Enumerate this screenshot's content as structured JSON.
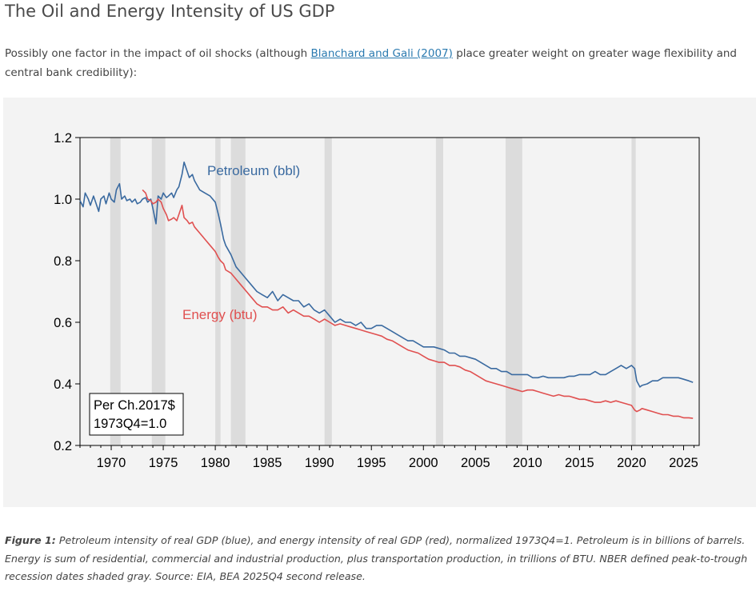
{
  "page": {
    "title": "The Oil and Energy Intensity of US GDP",
    "intro_before": "Possibly one factor in the impact of oil shocks (although ",
    "intro_link": "Blanchard and Gali (2007)",
    "intro_after": " place greater weight on greater wage flexibility and central bank credibility):",
    "caption_label": "Figure 1:",
    "caption_text": " Petroleum intensity of real GDP (blue), and energy intensity of real GDP (red), normalized 1973Q4=1. Petroleum is in billions of barrels. Energy is sum of residential, commercial and industrial production, plus transportation production, in trillions of BTU. NBER defined peak-to-trough recession dates shaded gray. Source: EIA, BEA 2025Q4 second release."
  },
  "chart_data": {
    "type": "line",
    "xlim": [
      1967,
      2026.5
    ],
    "ylim": [
      0.2,
      1.2
    ],
    "xticks": [
      "1970",
      "1975",
      "1980",
      "1985",
      "1990",
      "1995",
      "2000",
      "2005",
      "2010",
      "2015",
      "2020",
      "2025"
    ],
    "yticks": [
      "0.2",
      "0.4",
      "0.6",
      "0.8",
      "1.0",
      "1.2"
    ],
    "grid": false,
    "note_lines": [
      "Per Ch.2017$",
      "1973Q4=1.0"
    ],
    "recessions": [
      [
        1969.9,
        1970.9
      ],
      [
        1973.9,
        1975.2
      ],
      [
        1980.0,
        1980.5
      ],
      [
        1981.5,
        1982.9
      ],
      [
        1990.5,
        1991.2
      ],
      [
        2001.2,
        2001.9
      ],
      [
        2007.9,
        2009.5
      ],
      [
        2020.0,
        2020.4
      ]
    ],
    "series": [
      {
        "name": "Petroleum (bbl)",
        "color": "#3a6aa0",
        "x": [
          1967.0,
          1967.3,
          1967.5,
          1967.8,
          1968.0,
          1968.3,
          1968.5,
          1968.8,
          1969.0,
          1969.3,
          1969.5,
          1969.8,
          1970.0,
          1970.3,
          1970.5,
          1970.8,
          1971.0,
          1971.3,
          1971.5,
          1971.8,
          1972.0,
          1972.3,
          1972.5,
          1972.8,
          1973.0,
          1973.3,
          1973.5,
          1973.8,
          1974.0,
          1974.3,
          1974.5,
          1974.8,
          1975.0,
          1975.3,
          1975.5,
          1975.8,
          1976.0,
          1976.3,
          1976.5,
          1976.8,
          1977.0,
          1977.3,
          1977.5,
          1977.8,
          1978.0,
          1978.5,
          1979.0,
          1979.5,
          1980.0,
          1980.3,
          1980.5,
          1980.8,
          1981.0,
          1981.5,
          1982.0,
          1982.5,
          1983.0,
          1983.5,
          1984.0,
          1984.5,
          1985.0,
          1985.5,
          1986.0,
          1986.5,
          1987.0,
          1987.5,
          1988.0,
          1988.5,
          1989.0,
          1989.5,
          1990.0,
          1990.5,
          1991.0,
          1991.5,
          1992.0,
          1992.5,
          1993.0,
          1993.5,
          1994.0,
          1994.5,
          1995.0,
          1995.5,
          1996.0,
          1996.5,
          1997.0,
          1997.5,
          1998.0,
          1998.5,
          1999.0,
          1999.5,
          2000.0,
          2000.5,
          2001.0,
          2001.5,
          2002.0,
          2002.5,
          2003.0,
          2003.5,
          2004.0,
          2004.5,
          2005.0,
          2005.5,
          2006.0,
          2006.5,
          2007.0,
          2007.5,
          2008.0,
          2008.5,
          2009.0,
          2009.5,
          2010.0,
          2010.5,
          2011.0,
          2011.5,
          2012.0,
          2012.5,
          2013.0,
          2013.5,
          2014.0,
          2014.5,
          2015.0,
          2015.5,
          2016.0,
          2016.5,
          2017.0,
          2017.5,
          2018.0,
          2018.5,
          2019.0,
          2019.5,
          2020.0,
          2020.3,
          2020.5,
          2020.8,
          2021.0,
          2021.5,
          2022.0,
          2022.5,
          2023.0,
          2023.5,
          2024.0,
          2024.5,
          2025.0,
          2025.5,
          2025.9
        ],
        "values": [
          0.995,
          0.975,
          1.02,
          1.0,
          0.98,
          1.01,
          0.99,
          0.96,
          1.0,
          1.01,
          0.985,
          1.02,
          1.0,
          0.99,
          1.03,
          1.05,
          1.0,
          1.01,
          0.995,
          1.0,
          0.99,
          1.0,
          0.985,
          0.99,
          1.0,
          1.005,
          0.99,
          1.0,
          0.97,
          0.92,
          1.01,
          1.0,
          1.02,
          1.005,
          1.01,
          1.02,
          1.005,
          1.03,
          1.04,
          1.08,
          1.12,
          1.09,
          1.07,
          1.08,
          1.06,
          1.03,
          1.02,
          1.01,
          0.99,
          0.95,
          0.92,
          0.87,
          0.85,
          0.82,
          0.78,
          0.76,
          0.74,
          0.72,
          0.7,
          0.69,
          0.68,
          0.7,
          0.67,
          0.69,
          0.68,
          0.67,
          0.67,
          0.65,
          0.66,
          0.64,
          0.63,
          0.64,
          0.62,
          0.6,
          0.61,
          0.6,
          0.6,
          0.59,
          0.6,
          0.58,
          0.58,
          0.59,
          0.59,
          0.58,
          0.57,
          0.56,
          0.55,
          0.54,
          0.54,
          0.53,
          0.52,
          0.52,
          0.52,
          0.515,
          0.51,
          0.5,
          0.5,
          0.49,
          0.49,
          0.485,
          0.48,
          0.47,
          0.46,
          0.45,
          0.45,
          0.44,
          0.44,
          0.43,
          0.43,
          0.43,
          0.43,
          0.42,
          0.42,
          0.425,
          0.42,
          0.42,
          0.42,
          0.42,
          0.425,
          0.425,
          0.43,
          0.43,
          0.43,
          0.44,
          0.43,
          0.43,
          0.44,
          0.45,
          0.46,
          0.45,
          0.46,
          0.45,
          0.41,
          0.39,
          0.395,
          0.4,
          0.41,
          0.41,
          0.42,
          0.42,
          0.42,
          0.42,
          0.415,
          0.41,
          0.405
        ]
      },
      {
        "name": "Energy (btu)",
        "color": "#e05050",
        "x": [
          1973.0,
          1973.3,
          1973.5,
          1973.8,
          1974.0,
          1974.3,
          1974.5,
          1974.8,
          1975.0,
          1975.3,
          1975.5,
          1975.8,
          1976.0,
          1976.3,
          1976.5,
          1976.8,
          1977.0,
          1977.3,
          1977.5,
          1977.8,
          1978.0,
          1978.5,
          1979.0,
          1979.5,
          1980.0,
          1980.3,
          1980.5,
          1980.8,
          1981.0,
          1981.5,
          1982.0,
          1982.5,
          1983.0,
          1983.5,
          1984.0,
          1984.5,
          1985.0,
          1985.5,
          1986.0,
          1986.5,
          1987.0,
          1987.5,
          1988.0,
          1988.5,
          1989.0,
          1989.5,
          1990.0,
          1990.5,
          1991.0,
          1991.5,
          1992.0,
          1992.5,
          1993.0,
          1993.5,
          1994.0,
          1994.5,
          1995.0,
          1995.5,
          1996.0,
          1996.5,
          1997.0,
          1997.5,
          1998.0,
          1998.5,
          1999.0,
          1999.5,
          2000.0,
          2000.5,
          2001.0,
          2001.5,
          2002.0,
          2002.5,
          2003.0,
          2003.5,
          2004.0,
          2004.5,
          2005.0,
          2005.5,
          2006.0,
          2006.5,
          2007.0,
          2007.5,
          2008.0,
          2008.5,
          2009.0,
          2009.5,
          2010.0,
          2010.5,
          2011.0,
          2011.5,
          2012.0,
          2012.5,
          2013.0,
          2013.5,
          2014.0,
          2014.5,
          2015.0,
          2015.5,
          2016.0,
          2016.5,
          2017.0,
          2017.5,
          2018.0,
          2018.5,
          2019.0,
          2019.5,
          2020.0,
          2020.3,
          2020.5,
          2020.8,
          2021.0,
          2021.5,
          2022.0,
          2022.5,
          2023.0,
          2023.5,
          2024.0,
          2024.5,
          2025.0,
          2025.5,
          2025.9
        ],
        "values": [
          1.03,
          1.02,
          1.0,
          0.995,
          0.985,
          0.99,
          1.0,
          0.99,
          0.97,
          0.95,
          0.93,
          0.935,
          0.94,
          0.93,
          0.95,
          0.98,
          0.94,
          0.93,
          0.92,
          0.925,
          0.91,
          0.89,
          0.87,
          0.85,
          0.83,
          0.81,
          0.8,
          0.79,
          0.77,
          0.76,
          0.74,
          0.72,
          0.7,
          0.68,
          0.66,
          0.65,
          0.65,
          0.64,
          0.64,
          0.65,
          0.63,
          0.64,
          0.63,
          0.62,
          0.62,
          0.61,
          0.6,
          0.61,
          0.6,
          0.59,
          0.595,
          0.59,
          0.585,
          0.58,
          0.575,
          0.57,
          0.565,
          0.56,
          0.555,
          0.545,
          0.54,
          0.53,
          0.52,
          0.51,
          0.505,
          0.5,
          0.49,
          0.48,
          0.475,
          0.47,
          0.47,
          0.46,
          0.46,
          0.455,
          0.445,
          0.44,
          0.43,
          0.42,
          0.41,
          0.405,
          0.4,
          0.395,
          0.39,
          0.385,
          0.38,
          0.375,
          0.38,
          0.38,
          0.375,
          0.37,
          0.365,
          0.36,
          0.365,
          0.36,
          0.36,
          0.355,
          0.35,
          0.35,
          0.345,
          0.34,
          0.34,
          0.345,
          0.34,
          0.345,
          0.34,
          0.335,
          0.33,
          0.315,
          0.31,
          0.315,
          0.32,
          0.315,
          0.31,
          0.305,
          0.3,
          0.3,
          0.295,
          0.295,
          0.29,
          0.29,
          0.288
        ]
      }
    ]
  }
}
